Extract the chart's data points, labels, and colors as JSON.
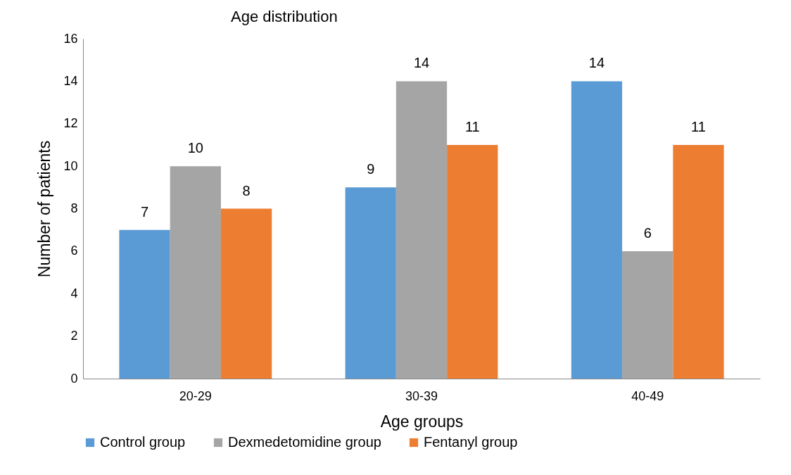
{
  "chart_data": {
    "type": "bar",
    "title": "Age distribution",
    "xlabel": "Age groups",
    "ylabel": "Number of patients",
    "categories": [
      "20-29",
      "30-39",
      "40-49"
    ],
    "series": [
      {
        "name": "Control group",
        "color": "#5b9bd5",
        "values": [
          7,
          9,
          14
        ]
      },
      {
        "name": "Dexmedetomidine group",
        "color": "#a5a5a5",
        "values": [
          10,
          14,
          6
        ]
      },
      {
        "name": "Fentanyl group",
        "color": "#ed7d31",
        "values": [
          8,
          11,
          11
        ]
      }
    ],
    "ylim": [
      0,
      16
    ],
    "yticks": [
      0,
      2,
      4,
      6,
      8,
      10,
      12,
      14,
      16
    ],
    "data_labels": true,
    "legend": "bottom"
  }
}
